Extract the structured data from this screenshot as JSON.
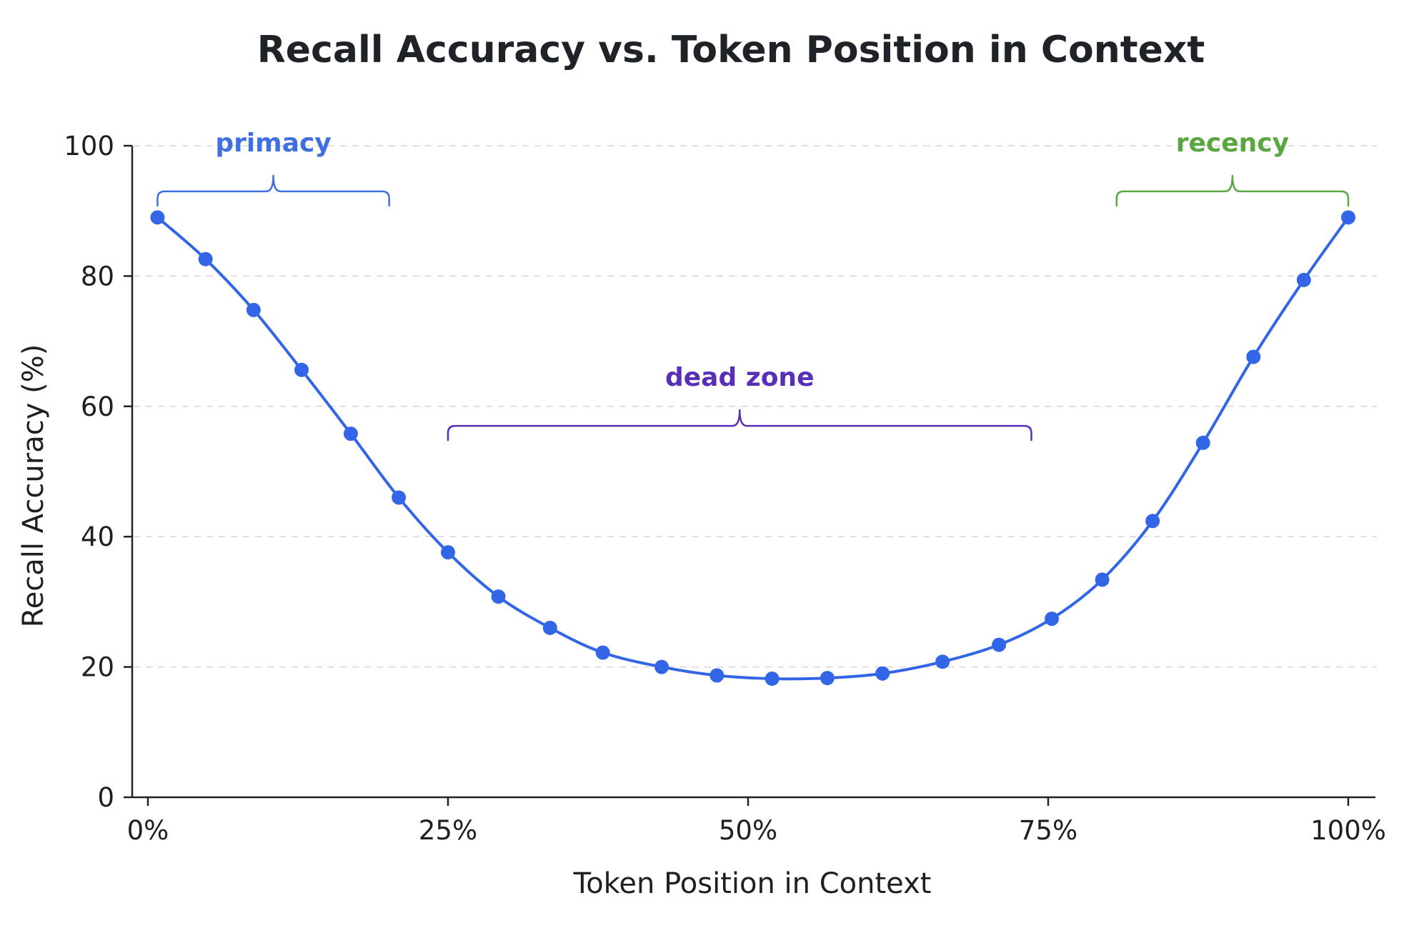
{
  "chart_data": {
    "type": "line",
    "title": "Recall Accuracy vs. Token Position in Context",
    "xlabel": "Token Position in Context",
    "ylabel": "Recall Accuracy (%)",
    "xlim": [
      0,
      100
    ],
    "ylim": [
      0,
      100
    ],
    "x_ticks": [
      0,
      25,
      50,
      75,
      100
    ],
    "x_tick_labels": [
      "0%",
      "25%",
      "50%",
      "75%",
      "100%"
    ],
    "y_ticks": [
      0,
      20,
      40,
      60,
      80,
      100
    ],
    "y_tick_labels": [
      "0",
      "20",
      "40",
      "60",
      "80",
      "100"
    ],
    "grid": "horizontal dashed",
    "series": [
      {
        "color": "#3366e6",
        "points": [
          {
            "x": 0.8,
            "y": 89
          },
          {
            "x": 4.8,
            "y": 82.6
          },
          {
            "x": 8.8,
            "y": 74.8
          },
          {
            "x": 12.8,
            "y": 65.6
          },
          {
            "x": 16.9,
            "y": 55.8
          },
          {
            "x": 20.9,
            "y": 46
          },
          {
            "x": 25.0,
            "y": 37.6
          },
          {
            "x": 29.2,
            "y": 30.8
          },
          {
            "x": 33.5,
            "y": 26
          },
          {
            "x": 37.9,
            "y": 22.2
          },
          {
            "x": 42.8,
            "y": 20
          },
          {
            "x": 47.4,
            "y": 18.7
          },
          {
            "x": 52.0,
            "y": 18.2
          },
          {
            "x": 56.6,
            "y": 18.3
          },
          {
            "x": 61.2,
            "y": 19
          },
          {
            "x": 66.2,
            "y": 20.8
          },
          {
            "x": 70.9,
            "y": 23.4
          },
          {
            "x": 75.3,
            "y": 27.4
          },
          {
            "x": 79.5,
            "y": 33.4
          },
          {
            "x": 83.7,
            "y": 42.4
          },
          {
            "x": 87.9,
            "y": 54.4
          },
          {
            "x": 92.1,
            "y": 67.6
          },
          {
            "x": 96.3,
            "y": 79.4
          },
          {
            "x": 100.0,
            "y": 89
          }
        ]
      }
    ],
    "annotations": [
      {
        "label": "primacy",
        "color": "#3f6fe0",
        "x_start": 0.8,
        "x_end": 20.1,
        "y": 93
      },
      {
        "label": "dead zone",
        "color": "#5a2fb8",
        "x_start": 25.0,
        "x_end": 73.6,
        "y": 57
      },
      {
        "label": "recency",
        "color": "#5aa640",
        "x_start": 80.7,
        "x_end": 100.0,
        "y": 93
      }
    ]
  }
}
